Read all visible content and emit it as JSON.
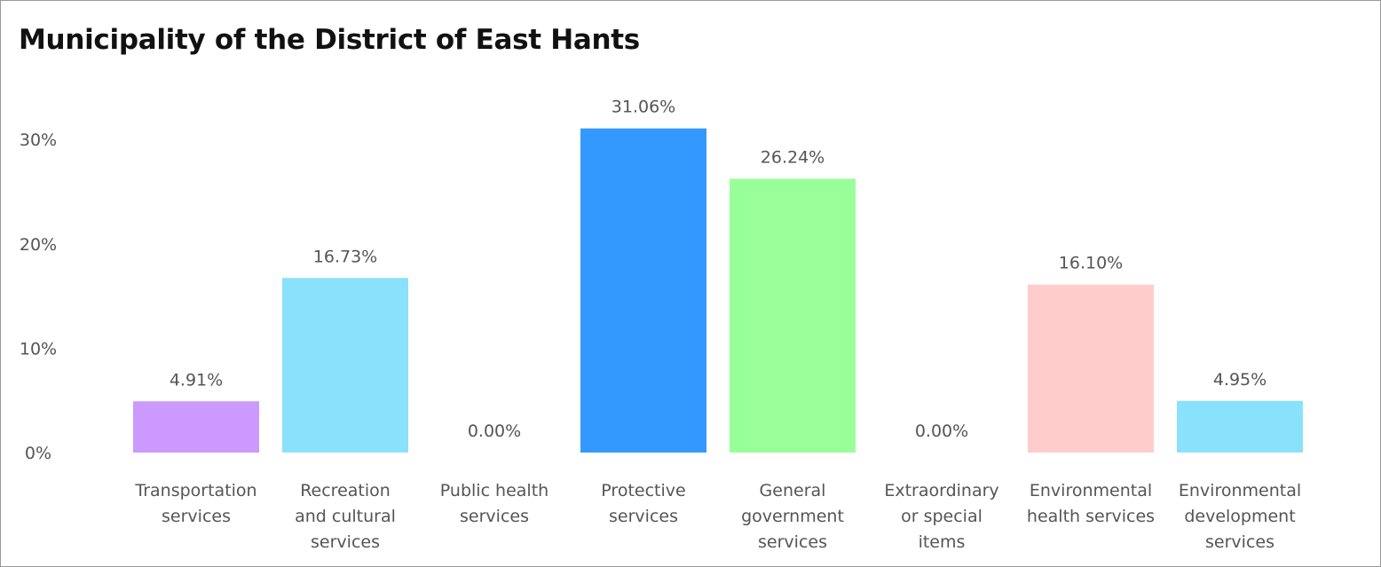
{
  "title": "Municipality of the District of East Hants",
  "chart_data": {
    "type": "bar",
    "title": "Municipality of the District of East Hants",
    "xlabel": "",
    "ylabel": "",
    "ylim": [
      0,
      34
    ],
    "y_ticks": [
      0,
      10,
      20,
      30
    ],
    "y_tick_labels": [
      "0%",
      "10%",
      "20%",
      "30%"
    ],
    "grid": false,
    "legend": "none",
    "categories": [
      [
        "Transportation",
        "services"
      ],
      [
        "Recreation",
        "and cultural",
        "services"
      ],
      [
        "Public health",
        "services"
      ],
      [
        "Protective",
        "services"
      ],
      [
        "General",
        "government",
        "services"
      ],
      [
        "Extraordinary",
        "or special",
        "items"
      ],
      [
        "Environmental",
        "health services"
      ],
      [
        "Environmental",
        "development",
        "services"
      ]
    ],
    "values": [
      4.91,
      16.73,
      0.0,
      31.06,
      26.24,
      0.0,
      16.1,
      4.95
    ],
    "data_labels": [
      "4.91%",
      "16.73%",
      "0.00%",
      "31.06%",
      "26.24%",
      "0.00%",
      "16.10%",
      "4.95%"
    ],
    "colors": [
      "#cc99ff",
      "#8ae1fc",
      "#cccccc",
      "#3399ff",
      "#99ff99",
      "#cccccc",
      "#ffcccc",
      "#8ae1fc"
    ]
  }
}
